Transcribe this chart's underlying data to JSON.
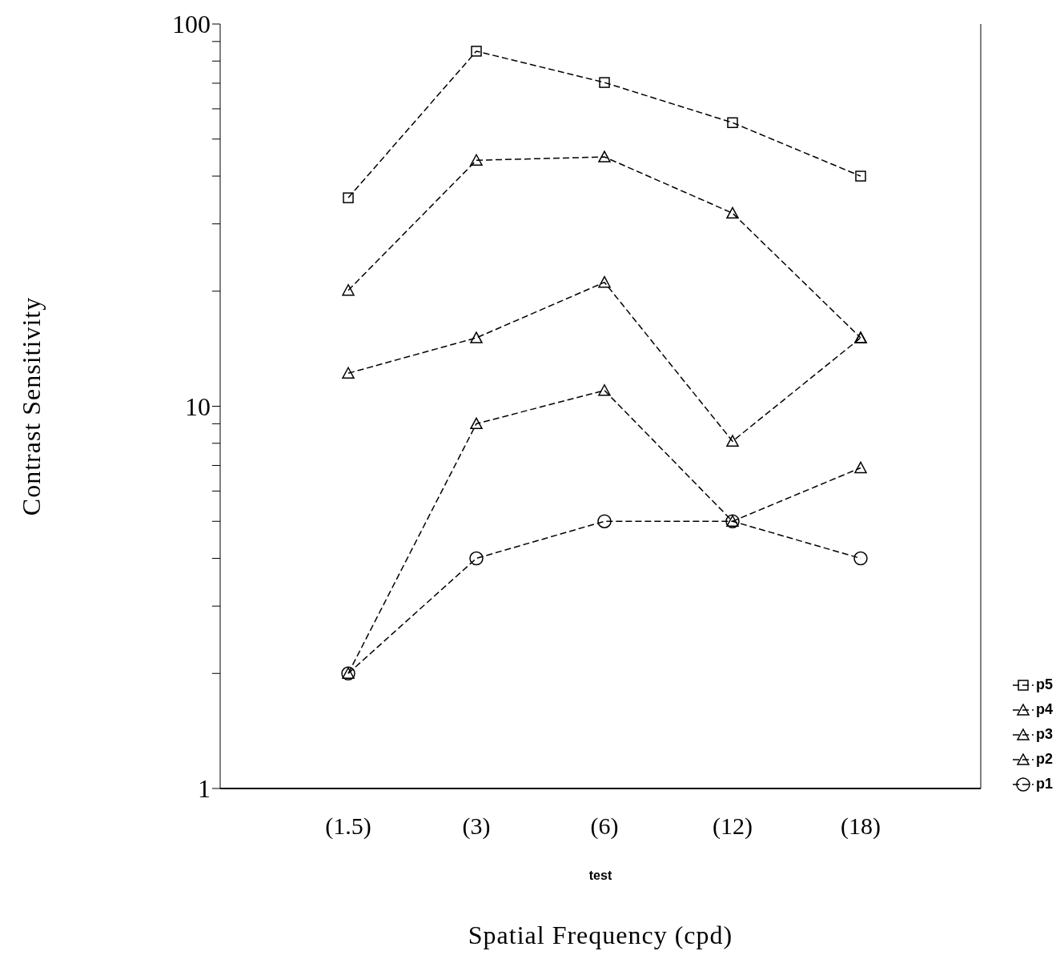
{
  "chart_data": {
    "type": "line",
    "xlabel": "Spatial Frequency (cpd)",
    "ylabel": "Contrast Sensitivity",
    "annotations": [
      "test"
    ],
    "categories": [
      "(1.5)",
      "(3)",
      "(6)",
      "(12)",
      "(18)"
    ],
    "series": [
      {
        "name": "p1",
        "color": "#000000",
        "marker": "circle",
        "values": [
          2.0,
          4.0,
          5.0,
          5.0,
          4.0
        ]
      },
      {
        "name": "p2",
        "color": "#000000",
        "marker": "triangle",
        "values": [
          2.0,
          9.0,
          11.0,
          5.0,
          6.9
        ]
      },
      {
        "name": "p3",
        "color": "#000000",
        "marker": "triangle",
        "values": [
          12.2,
          15.1,
          21.1,
          8.1,
          15.1
        ]
      },
      {
        "name": "p4",
        "color": "#000000",
        "marker": "triangle",
        "values": [
          20.1,
          44.0,
          44.9,
          32.0,
          15.1
        ]
      },
      {
        "name": "p5",
        "color": "#000000",
        "marker": "square",
        "values": [
          35.1,
          84.9,
          70.3,
          55.2,
          40.0
        ]
      }
    ],
    "log": "y",
    "ylim": [
      1,
      100
    ],
    "yticks": [
      1,
      {
        "value": 2,
        "label": null
      },
      {
        "value": 3,
        "label": null
      },
      {
        "value": 4,
        "label": null
      },
      {
        "value": 5,
        "label": null
      },
      {
        "value": 6,
        "label": null
      },
      {
        "value": 7,
        "label": null
      },
      {
        "value": 8,
        "label": null
      },
      {
        "value": 9,
        "label": null
      },
      10,
      {
        "value": 20,
        "label": null
      },
      {
        "value": 30,
        "label": null
      },
      {
        "value": 40,
        "label": null
      },
      {
        "value": 50,
        "label": null
      },
      {
        "value": 60,
        "label": null
      },
      {
        "value": 70,
        "label": null
      },
      {
        "value": 80,
        "label": null
      },
      {
        "value": 90,
        "label": null
      },
      100
    ],
    "grid": false,
    "legend": "right",
    "line_style": "dashed"
  }
}
